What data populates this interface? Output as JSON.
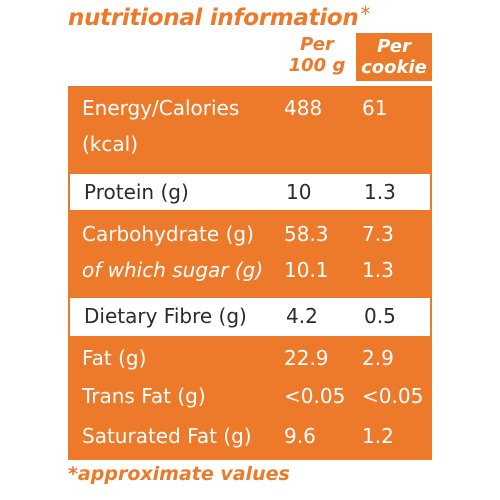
{
  "title": "nutritional information",
  "title_asterisk": "*",
  "columns": {
    "per100": [
      "Per",
      "100 g"
    ],
    "per_cookie": [
      "Per",
      "cookie"
    ]
  },
  "rows": {
    "energy": {
      "label_line1": "Energy/Calories",
      "label_line2": "(kcal)",
      "per100": "488",
      "per_cookie": "61"
    },
    "protein": {
      "label": "Protein (g)",
      "per100": "10",
      "per_cookie": "1.3"
    },
    "carbohydrate": {
      "label": "Carbohydrate (g)",
      "per100": "58.3",
      "per_cookie": "7.3"
    },
    "sugar": {
      "label": "of which sugar (g)",
      "per100": "10.1",
      "per_cookie": "1.3"
    },
    "fibre": {
      "label": "Dietary Fibre (g)",
      "per100": "4.2",
      "per_cookie": "0.5"
    },
    "fat": {
      "label": "Fat (g)",
      "per100": "22.9",
      "per_cookie": "2.9"
    },
    "trans_fat": {
      "label": "Trans Fat (g)",
      "per100": "<0.05",
      "per_cookie": "<0.05"
    },
    "saturated_fat": {
      "label": "Saturated Fat (g)",
      "per100": "9.6",
      "per_cookie": "1.2"
    }
  },
  "footnote": "*approximate values",
  "colors": {
    "accent": "#ec7a2a",
    "text_dark": "#2b2b2b",
    "white": "#ffffff"
  }
}
